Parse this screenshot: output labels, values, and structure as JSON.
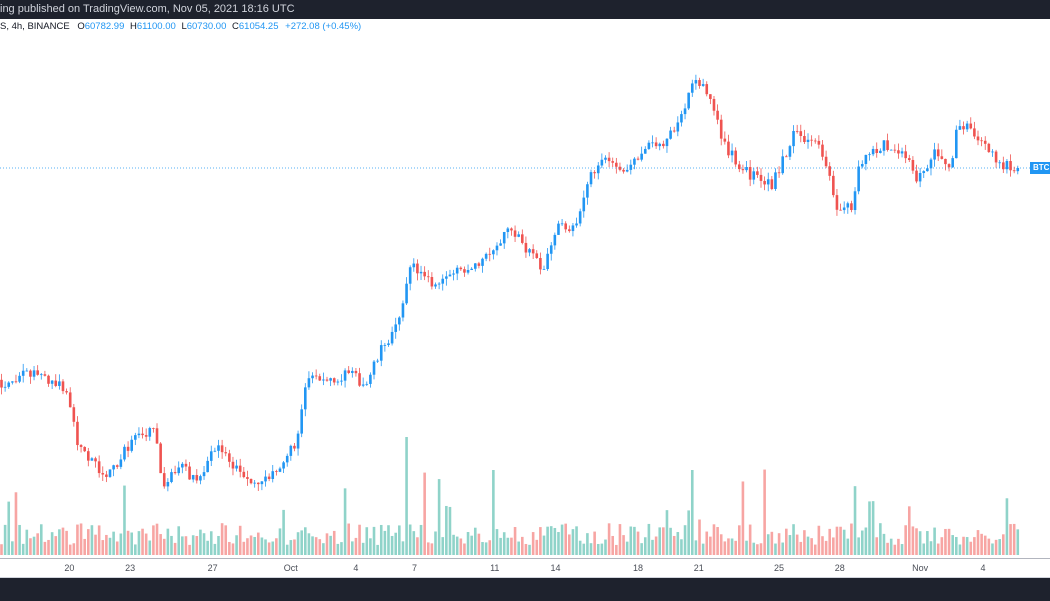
{
  "header": {
    "published_text": "ing published on TradingView.com, Nov 05, 2021 18:16 UTC"
  },
  "legend": {
    "symbol_info": "S, 4h, BINANCE",
    "open_label": "O",
    "open": "60782.99",
    "high_label": "H",
    "high": "61100.00",
    "low_label": "L",
    "low": "60730.00",
    "close_label": "C",
    "close": "61054.25",
    "change": "+272.08 (+0.45%)"
  },
  "price_label": "BTC",
  "colors": {
    "up": "#2196f3",
    "down": "#ef5350",
    "vol_up": "#8fd3c9",
    "vol_down": "#f7a5a3",
    "price_line": "#2196f3",
    "dark": "#1e222d"
  },
  "chart_data": {
    "type": "candlestick",
    "interval": "4h",
    "x_unit": "days since Sep 16, 2021 18:00",
    "current_price": 61054.25,
    "close_path": [
      [
        0,
        47595
      ],
      [
        1.6,
        48284
      ],
      [
        3.0,
        47157
      ],
      [
        3.5,
        44027
      ],
      [
        4.8,
        41523
      ],
      [
        6.0,
        44027
      ],
      [
        7.1,
        44653
      ],
      [
        7.4,
        40897
      ],
      [
        8.1,
        42462
      ],
      [
        9.0,
        41523
      ],
      [
        9.9,
        43714
      ],
      [
        11.5,
        41210
      ],
      [
        12.4,
        41523
      ],
      [
        13.6,
        44027
      ],
      [
        14.1,
        47783
      ],
      [
        16.1,
        48096
      ],
      [
        16.8,
        47470
      ],
      [
        17.5,
        49661
      ],
      [
        18.4,
        51539
      ],
      [
        18.8,
        55170
      ],
      [
        19.8,
        53730
      ],
      [
        22.1,
        55295
      ],
      [
        23.5,
        57298
      ],
      [
        24.9,
        54669
      ],
      [
        25.6,
        57486
      ],
      [
        26.5,
        57298
      ],
      [
        27.0,
        59990
      ],
      [
        27.6,
        61868
      ],
      [
        28.8,
        60929
      ],
      [
        29.5,
        62181
      ],
      [
        30.6,
        62807
      ],
      [
        31.3,
        64059
      ],
      [
        31.9,
        66876
      ],
      [
        32.7,
        65311
      ],
      [
        33.2,
        62807
      ],
      [
        34.1,
        60929
      ],
      [
        35.5,
        59990
      ],
      [
        36.6,
        63433
      ],
      [
        37.8,
        62181
      ],
      [
        38.5,
        58425
      ],
      [
        39.2,
        58738
      ],
      [
        39.6,
        61555
      ],
      [
        40.6,
        62494
      ],
      [
        41.7,
        61868
      ],
      [
        42.2,
        60303
      ],
      [
        43.1,
        62181
      ],
      [
        43.8,
        61242
      ],
      [
        44.1,
        64059
      ],
      [
        44.9,
        63120
      ],
      [
        46.1,
        61242
      ],
      [
        46.9,
        61054
      ]
    ],
    "x_ticks": [
      {
        "label": "20",
        "day": 3.2
      },
      {
        "label": "23",
        "day": 6.0
      },
      {
        "label": "27",
        "day": 9.8
      },
      {
        "label": "Oct",
        "day": 13.4
      },
      {
        "label": "4",
        "day": 16.4
      },
      {
        "label": "7",
        "day": 19.1
      },
      {
        "label": "11",
        "day": 22.8
      },
      {
        "label": "14",
        "day": 25.6
      },
      {
        "label": "18",
        "day": 29.4
      },
      {
        "label": "21",
        "day": 32.2
      },
      {
        "label": "25",
        "day": 35.9
      },
      {
        "label": "28",
        "day": 38.7
      },
      {
        "label": "Nov",
        "day": 42.4
      },
      {
        "label": "4",
        "day": 45.3
      }
    ]
  }
}
